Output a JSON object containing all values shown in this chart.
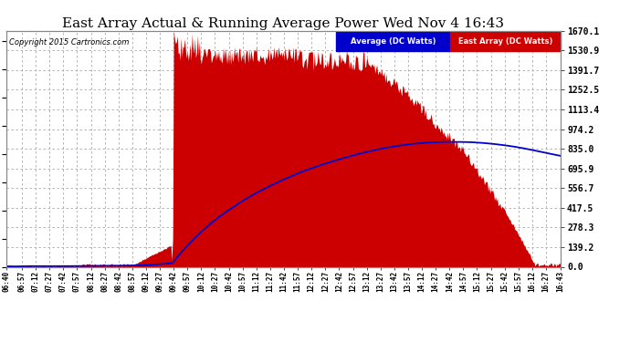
{
  "title": "East Array Actual & Running Average Power Wed Nov 4 16:43",
  "copyright": "Copyright 2015 Cartronics.com",
  "ylabel_right_values": [
    0.0,
    139.2,
    278.3,
    417.5,
    556.7,
    695.9,
    835.0,
    974.2,
    1113.4,
    1252.5,
    1391.7,
    1530.9,
    1670.1
  ],
  "ymax": 1670.1,
  "legend_labels": [
    "Average (DC Watts)",
    "East Array (DC Watts)"
  ],
  "legend_colors": [
    "#0000cc",
    "#cc0000"
  ],
  "plot_bg_color": "#ffffff",
  "fig_bg_color": "#ffffff",
  "title_color": "#000000",
  "grid_color": "#aaaaaa",
  "bar_color": "#cc0000",
  "line_color": "#0000cc",
  "tick_label_color": "#000000",
  "tick_times_str": [
    "06:40",
    "06:57",
    "07:12",
    "07:27",
    "07:42",
    "07:57",
    "08:12",
    "08:27",
    "08:42",
    "08:57",
    "09:12",
    "09:27",
    "09:42",
    "09:57",
    "10:12",
    "10:27",
    "10:42",
    "10:57",
    "11:12",
    "11:27",
    "11:42",
    "11:57",
    "12:12",
    "12:27",
    "12:42",
    "12:57",
    "13:12",
    "13:27",
    "13:42",
    "13:57",
    "14:12",
    "14:27",
    "14:42",
    "14:57",
    "15:12",
    "15:27",
    "15:42",
    "15:57",
    "16:12",
    "16:27",
    "16:43"
  ]
}
